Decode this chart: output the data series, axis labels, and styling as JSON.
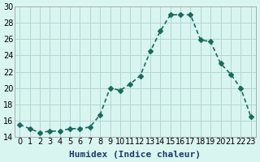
{
  "x": [
    0,
    1,
    2,
    3,
    4,
    5,
    6,
    7,
    8,
    9,
    10,
    11,
    12,
    13,
    14,
    15,
    16,
    17,
    18,
    19,
    20,
    21,
    22,
    23
  ],
  "y": [
    15.5,
    15.0,
    14.5,
    14.7,
    14.7,
    15.0,
    15.0,
    15.2,
    16.7,
    20.0,
    19.7,
    20.5,
    21.5,
    24.5,
    27.0,
    29.0,
    29.0,
    29.0,
    25.9,
    25.7,
    23.0,
    21.7,
    20.0,
    16.5
  ],
  "line_color": "#1a6b5a",
  "marker": "D",
  "marker_size": 3,
  "bg_color": "#d9f5f0",
  "grid_color": "#b0d8d0",
  "xlabel": "Humidex (Indice chaleur)",
  "ylabel": "",
  "xlim": [
    -0.5,
    23.5
  ],
  "ylim": [
    14,
    30
  ],
  "yticks": [
    14,
    16,
    18,
    20,
    22,
    24,
    26,
    28,
    30
  ],
  "xtick_labels": [
    "0",
    "1",
    "2",
    "3",
    "4",
    "5",
    "6",
    "7",
    "8",
    "9",
    "10",
    "11",
    "12",
    "13",
    "14",
    "15",
    "16",
    "17",
    "18",
    "19",
    "20",
    "21",
    "22",
    "23"
  ],
  "xlabel_fontsize": 8,
  "ylabel_fontsize": 8,
  "tick_fontsize": 7,
  "linewidth": 1.2
}
